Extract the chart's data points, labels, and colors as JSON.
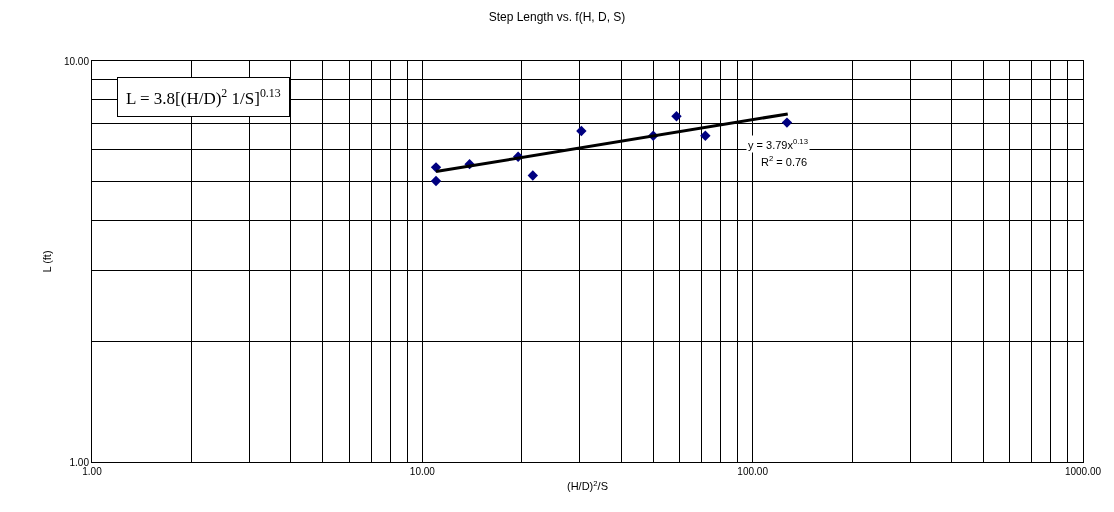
{
  "chart_data": {
    "type": "scatter",
    "title": "Step Length vs. f(H, D, S)",
    "xlabel": "(H/D)$^{2}$/S",
    "ylabel": "L (ft)",
    "log": "xy",
    "grid": true,
    "xlim": [
      1,
      1000
    ],
    "ylim": [
      1,
      10
    ],
    "xticks": [
      {
        "value": 1,
        "label": "1.00"
      },
      {
        "value": 2,
        "label": null
      },
      {
        "value": 3,
        "label": null
      },
      {
        "value": 4,
        "label": null
      },
      {
        "value": 5,
        "label": null
      },
      {
        "value": 6,
        "label": null
      },
      {
        "value": 7,
        "label": null
      },
      {
        "value": 8,
        "label": null
      },
      {
        "value": 9,
        "label": null
      },
      {
        "value": 10,
        "label": "10.00"
      },
      {
        "value": 20,
        "label": null
      },
      {
        "value": 30,
        "label": null
      },
      {
        "value": 40,
        "label": null
      },
      {
        "value": 50,
        "label": null
      },
      {
        "value": 60,
        "label": null
      },
      {
        "value": 70,
        "label": null
      },
      {
        "value": 80,
        "label": null
      },
      {
        "value": 90,
        "label": null
      },
      {
        "value": 100,
        "label": "100.00"
      },
      {
        "value": 200,
        "label": null
      },
      {
        "value": 300,
        "label": null
      },
      {
        "value": 400,
        "label": null
      },
      {
        "value": 500,
        "label": null
      },
      {
        "value": 600,
        "label": null
      },
      {
        "value": 700,
        "label": null
      },
      {
        "value": 800,
        "label": null
      },
      {
        "value": 900,
        "label": null
      },
      {
        "value": 1000,
        "label": "1000.00"
      }
    ],
    "yticks": [
      {
        "value": 1,
        "label": "1.00"
      },
      {
        "value": 2,
        "label": null
      },
      {
        "value": 3,
        "label": null
      },
      {
        "value": 4,
        "label": null
      },
      {
        "value": 5,
        "label": null
      },
      {
        "value": 6,
        "label": null
      },
      {
        "value": 7,
        "label": null
      },
      {
        "value": 8,
        "label": null
      },
      {
        "value": 9,
        "label": null
      },
      {
        "value": 10,
        "label": "10.00"
      }
    ],
    "series": [
      {
        "type": "scatter",
        "marker": "diamond",
        "color": "#000080",
        "x": [
          11,
          11,
          13.9,
          19.5,
          21.6,
          30.3,
          50,
          58.8,
          71.9,
          127
        ],
        "values": [
          5.43,
          5.02,
          5.53,
          5.77,
          5.18,
          6.69,
          6.51,
          7.28,
          6.51,
          7.02
        ]
      },
      {
        "type": "line",
        "marker": "none",
        "color": "#000000",
        "x": [
          11,
          127.7
        ],
        "values": [
          5.3,
          7.38
        ]
      }
    ],
    "annotations": [
      "L = 3.8[(H/D)$^{2}$ 1/S]$^{0.13}$",
      "y = 3.79x$^{0.13}$",
      "R$^{2}$ = 0.76"
    ]
  }
}
